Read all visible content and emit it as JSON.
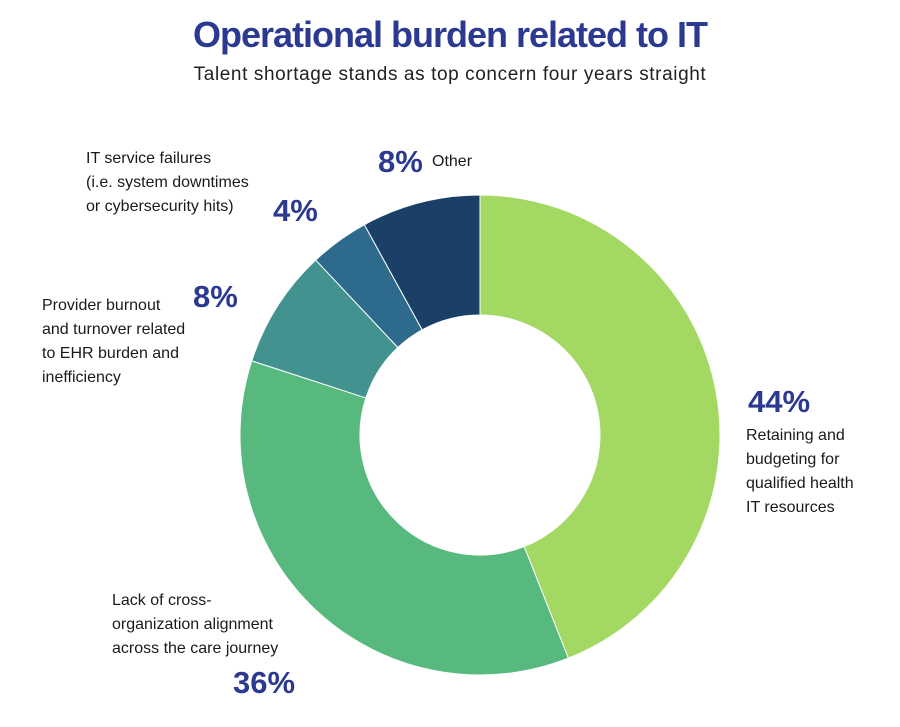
{
  "header": {
    "title": "Operational burden related to IT",
    "subtitle": "Talent shortage stands as top concern four years straight"
  },
  "chart_data": {
    "type": "pie",
    "style": "donut",
    "title": "Operational burden related to IT",
    "subtitle": "Talent shortage stands as top concern four years straight",
    "slices": [
      {
        "label": "Retaining and\nbudgeting for\nqualified health\nIT resources",
        "value": 44,
        "value_label": "44%",
        "color": "#a3d862"
      },
      {
        "label": "Lack of cross-\norganization alignment\nacross the care journey",
        "value": 36,
        "value_label": "36%",
        "color": "#57b97e"
      },
      {
        "label": "Provider burnout\nand turnover related\nto EHR burden and\ninefficiency",
        "value": 8,
        "value_label": "8%",
        "color": "#42938f"
      },
      {
        "label": "IT service failures\n(i.e. system downtimes\nor cybersecurity hits)",
        "value": 4,
        "value_label": "4%",
        "color": "#2e6a8b"
      },
      {
        "label": "Other",
        "value": 8,
        "value_label": "8%",
        "color": "#1b4068"
      }
    ],
    "start_angle_deg": 0,
    "direction": "clockwise",
    "legend": "none"
  }
}
